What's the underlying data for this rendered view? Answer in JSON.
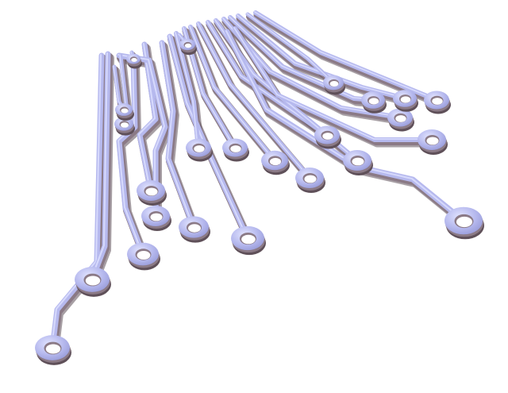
{
  "image": {
    "subject": "circuit-traces",
    "colors": {
      "background": "#ffffff",
      "trace_face": "#b6b9ee",
      "trace_highlight": "#dfe1ff",
      "trace_edge": "#8b7a86",
      "trace_shadow": "#5f5059",
      "pad_hole": "#ffffff"
    }
  }
}
